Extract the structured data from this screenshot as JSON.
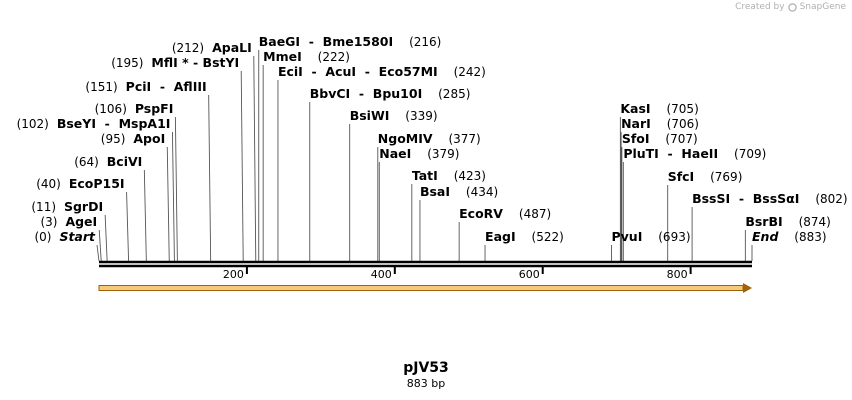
{
  "credit": {
    "text": "Created by",
    "brand": "SnapGene"
  },
  "plasmid": {
    "name": "pJV53",
    "length_label": "883 bp",
    "length": 883
  },
  "axis_ticks": [
    200,
    400,
    600,
    800
  ],
  "features": [
    {
      "name": "Start",
      "pos": 0,
      "pos_label": "(0)",
      "italic": true,
      "side": "left"
    },
    {
      "name": "AgeI",
      "pos": 3,
      "pos_label": "(3)",
      "side": "left"
    },
    {
      "name": "SgrDI",
      "pos": 11,
      "pos_label": "(11)",
      "side": "left"
    },
    {
      "name": "EcoP15I",
      "pos": 40,
      "pos_label": "(40)",
      "side": "left"
    },
    {
      "name": "BciVI",
      "pos": 64,
      "pos_label": "(64)",
      "side": "left"
    },
    {
      "name": "ApoI",
      "pos": 95,
      "pos_label": "(95)",
      "side": "left"
    },
    {
      "name": "BseYI  -  MspA1I",
      "pos": 102,
      "pos_label": "(102)",
      "side": "left"
    },
    {
      "name": "PspFI",
      "pos": 106,
      "pos_label": "(106)",
      "side": "left"
    },
    {
      "name": "PciI  -  AflIII",
      "pos": 151,
      "pos_label": "(151)",
      "side": "left"
    },
    {
      "name": "MflI * - BstYI",
      "pos": 195,
      "pos_label": "(195)",
      "side": "left"
    },
    {
      "name": "ApaLI",
      "pos": 212,
      "pos_label": "(212)",
      "side": "left"
    },
    {
      "name": "BaeGI  -  Bme1580I",
      "pos": 216,
      "pos_label": "(216)",
      "side": "right"
    },
    {
      "name": "MmeI",
      "pos": 222,
      "pos_label": "(222)",
      "side": "right"
    },
    {
      "name": "EciI  -  AcuI  -  Eco57MI",
      "pos": 242,
      "pos_label": "(242)",
      "side": "right"
    },
    {
      "name": "BbvCI  -  Bpu10I",
      "pos": 285,
      "pos_label": "(285)",
      "side": "right"
    },
    {
      "name": "BsiWI",
      "pos": 339,
      "pos_label": "(339)",
      "side": "right"
    },
    {
      "name": "NgoMIV",
      "pos": 377,
      "pos_label": "(377)",
      "side": "right"
    },
    {
      "name": "NaeI",
      "pos": 379,
      "pos_label": "(379)",
      "side": "right"
    },
    {
      "name": "TatI",
      "pos": 423,
      "pos_label": "(423)",
      "side": "right"
    },
    {
      "name": "BsaI",
      "pos": 434,
      "pos_label": "(434)",
      "side": "right"
    },
    {
      "name": "EcoRV",
      "pos": 487,
      "pos_label": "(487)",
      "side": "right"
    },
    {
      "name": "EagI",
      "pos": 522,
      "pos_label": "(522)",
      "side": "right"
    },
    {
      "name": "PvuI",
      "pos": 693,
      "pos_label": "(693)",
      "side": "right"
    },
    {
      "name": "KasI",
      "pos": 705,
      "pos_label": "(705)",
      "side": "right"
    },
    {
      "name": "NarI",
      "pos": 706,
      "pos_label": "(706)",
      "side": "right"
    },
    {
      "name": "SfoI",
      "pos": 707,
      "pos_label": "(707)",
      "side": "right"
    },
    {
      "name": "PluTI  -  HaeII",
      "pos": 709,
      "pos_label": "(709)",
      "side": "right"
    },
    {
      "name": "SfcI",
      "pos": 769,
      "pos_label": "(769)",
      "side": "right"
    },
    {
      "name": "BssSI  -  BssSαI",
      "pos": 802,
      "pos_label": "(802)",
      "side": "right"
    },
    {
      "name": "BsrBI",
      "pos": 874,
      "pos_label": "(874)",
      "side": "right"
    },
    {
      "name": "End",
      "pos": 883,
      "pos_label": "(883)",
      "italic": true,
      "side": "right"
    }
  ],
  "colors": {
    "arrow_fill": "#f5c97a",
    "arrow_stroke": "#a0620a",
    "backbone": "#000000",
    "leader": "#555555"
  }
}
